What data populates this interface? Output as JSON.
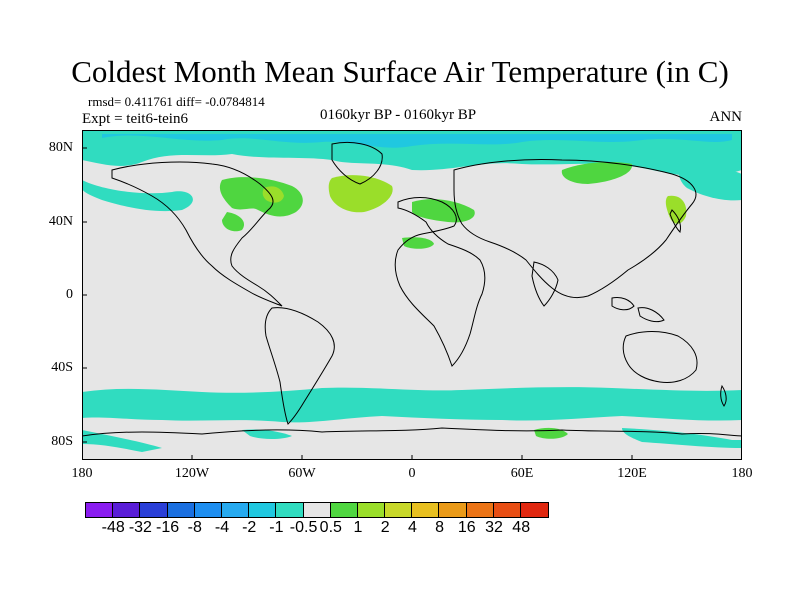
{
  "header": {
    "title": "Coldest Month Mean Surface Air Temperature (in C)",
    "stats": "rmsd= 0.411761 diff= -0.0784814",
    "expt": "Expt = teit6-tein6",
    "period": "0160kyr BP - 0160kyr BP",
    "season": "ANN"
  },
  "axes": {
    "lat_labels": [
      "80N",
      "40N",
      "0",
      "40S",
      "80S"
    ],
    "lon_labels": [
      "180",
      "120W",
      "60W",
      "0",
      "60E",
      "120E",
      "180"
    ]
  },
  "colorbar": {
    "labels": [
      "-48",
      "-32",
      "-16",
      "-8",
      "-4",
      "-2",
      "-1",
      "-0.5",
      "0.5",
      "1",
      "2",
      "4",
      "8",
      "16",
      "32",
      "48"
    ],
    "colors": [
      "#8a1cf0",
      "#5a1ed8",
      "#2a3fd8",
      "#1a6fe0",
      "#1e8ef0",
      "#26aaf0",
      "#20c8e0",
      "#30dcc0",
      "#e6e6e6",
      "#4fd640",
      "#9ade2a",
      "#c8d82a",
      "#e8c020",
      "#ea9a18",
      "#ec7416",
      "#e84e14",
      "#e02810"
    ]
  },
  "legend_colors": {
    "neutral": "#e6e6e6",
    "neg_small": "#30dcc0",
    "neg_mid": "#20c8e0",
    "neg_large": "#26aaf0",
    "pos_small": "#4fd640",
    "pos_mid": "#9ade2a"
  }
}
